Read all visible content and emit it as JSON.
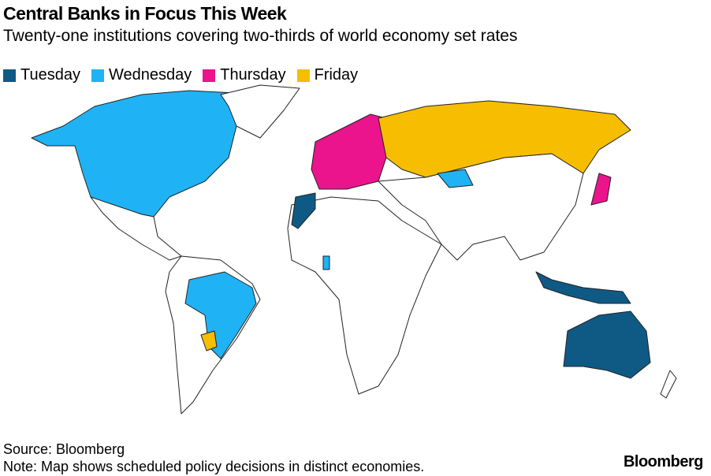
{
  "header": {
    "title": "Central Banks in Focus This Week",
    "subtitle": "Twenty-one institutions covering two-thirds of world economy set rates"
  },
  "legend": [
    {
      "label": "Tuesday",
      "color": "#0f5a85"
    },
    {
      "label": "Wednesday",
      "color": "#1fb3f5"
    },
    {
      "label": "Thursday",
      "color": "#eb148c"
    },
    {
      "label": "Friday",
      "color": "#f7bd00"
    }
  ],
  "footer": {
    "source": "Source: Bloomberg",
    "note": "Note: Map shows scheduled policy decisions in distinct economies.",
    "brand": "Bloomberg"
  }
}
